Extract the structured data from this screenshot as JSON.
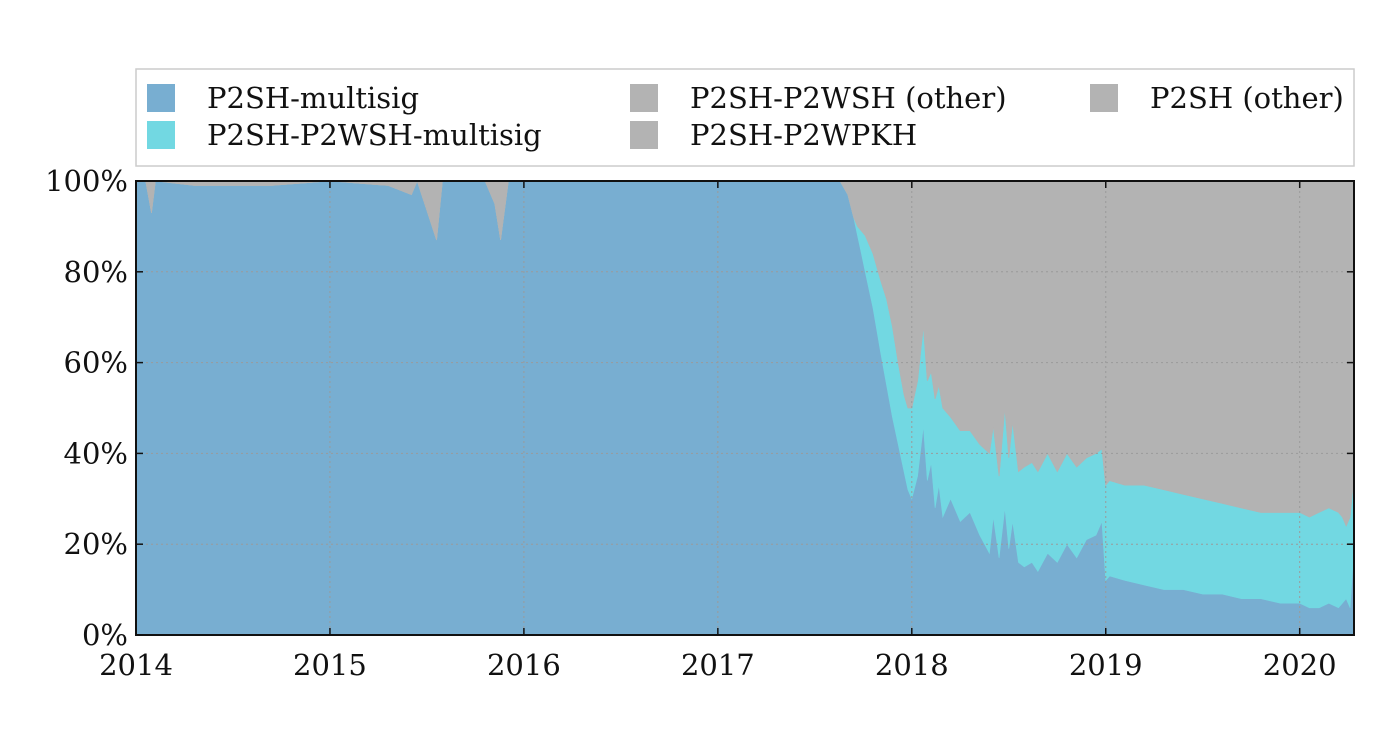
{
  "chart_data": {
    "type": "area",
    "stacked": true,
    "normalized_percent": true,
    "title": "",
    "xlabel": "",
    "ylabel": "",
    "ylim": [
      0,
      100
    ],
    "xlim": [
      2014.0,
      2020.28
    ],
    "x_ticks": [
      "2014",
      "2015",
      "2016",
      "2017",
      "2018",
      "2019",
      "2020"
    ],
    "y_ticks": [
      "0%",
      "20%",
      "40%",
      "60%",
      "80%",
      "100%"
    ],
    "grid": true,
    "legend_position": "top",
    "x": [
      2014.0,
      2014.05,
      2014.08,
      2014.1,
      2014.3,
      2014.7,
      2015.0,
      2015.3,
      2015.42,
      2015.45,
      2015.55,
      2015.58,
      2015.8,
      2015.85,
      2015.88,
      2015.92,
      2016.0,
      2016.5,
      2017.0,
      2017.5,
      2017.63,
      2017.67,
      2017.7,
      2017.72,
      2017.74,
      2017.76,
      2017.8,
      2017.84,
      2017.87,
      2017.9,
      2017.93,
      2017.96,
      2017.98,
      2018.0,
      2018.03,
      2018.06,
      2018.08,
      2018.1,
      2018.12,
      2018.14,
      2018.16,
      2018.2,
      2018.25,
      2018.3,
      2018.35,
      2018.4,
      2018.42,
      2018.45,
      2018.48,
      2018.5,
      2018.52,
      2018.55,
      2018.58,
      2018.62,
      2018.65,
      2018.7,
      2018.75,
      2018.8,
      2018.85,
      2018.9,
      2018.95,
      2018.98,
      2019.0,
      2019.02,
      2019.1,
      2019.2,
      2019.3,
      2019.4,
      2019.5,
      2019.6,
      2019.7,
      2019.8,
      2019.9,
      2020.0,
      2020.05,
      2020.1,
      2020.15,
      2020.2,
      2020.22,
      2020.24,
      2020.26,
      2020.28
    ],
    "series": [
      {
        "name": "P2SH-multisig",
        "color": "#78aed1",
        "values": [
          100,
          100,
          93,
          100,
          99,
          99,
          100,
          99,
          97,
          100,
          87,
          100,
          100,
          95,
          87,
          100,
          100,
          100,
          100,
          100,
          100,
          97,
          92,
          88,
          84,
          80,
          72,
          62,
          55,
          48,
          42,
          36,
          32,
          30,
          35,
          46,
          34,
          38,
          28,
          33,
          26,
          30,
          25,
          27,
          22,
          18,
          26,
          17,
          28,
          19,
          25,
          16,
          15,
          16,
          14,
          18,
          16,
          20,
          17,
          21,
          22,
          25,
          12,
          13,
          12,
          11,
          10,
          10,
          9,
          9,
          8,
          8,
          7,
          7,
          6,
          6,
          7,
          6,
          7,
          8,
          6,
          19
        ]
      },
      {
        "name": "P2SH-P2WSH-multisig",
        "color": "#72d8e2",
        "values": [
          0,
          0,
          0,
          0,
          0,
          0,
          0,
          0,
          0,
          0,
          0,
          0,
          0,
          0,
          0,
          0,
          0,
          0,
          0,
          0,
          0,
          0,
          0,
          2,
          5,
          8,
          12,
          16,
          19,
          20,
          18,
          17,
          18,
          20,
          21,
          22,
          22,
          20,
          24,
          22,
          24,
          18,
          20,
          18,
          20,
          22,
          20,
          18,
          22,
          20,
          22,
          20,
          22,
          22,
          22,
          22,
          20,
          20,
          20,
          18,
          18,
          16,
          21,
          21,
          21,
          22,
          22,
          21,
          21,
          20,
          20,
          19,
          20,
          20,
          20,
          21,
          21,
          21,
          19,
          16,
          20,
          16
        ]
      },
      {
        "name": "P2SH-P2WSH (other)",
        "color": "#b3b3b3",
        "values": [
          0,
          0,
          0,
          0,
          0,
          0,
          0,
          0,
          0,
          0,
          0,
          0,
          0,
          0,
          0,
          0,
          0,
          0,
          0,
          0,
          0,
          0,
          0,
          0,
          0,
          0,
          0,
          0,
          0,
          0,
          0,
          0,
          0,
          0,
          0,
          0,
          0,
          0,
          0,
          0,
          0,
          0,
          0,
          0,
          0,
          0,
          0,
          0,
          0,
          0,
          0,
          0,
          0,
          0,
          0,
          0,
          0,
          0,
          0,
          0,
          0,
          0,
          0,
          0,
          0,
          0,
          0,
          0,
          0,
          0,
          0,
          0,
          0,
          0,
          0,
          0,
          0,
          0,
          0,
          0,
          0,
          0
        ]
      },
      {
        "name": "P2SH-P2WPKH",
        "color": "#b3b3b3",
        "values": [
          0,
          0,
          0,
          0,
          0,
          0,
          0,
          0,
          0,
          0,
          0,
          0,
          0,
          0,
          0,
          0,
          0,
          0,
          0,
          0,
          0,
          3,
          8,
          10,
          11,
          12,
          16,
          22,
          26,
          32,
          40,
          47,
          50,
          50,
          44,
          32,
          44,
          42,
          48,
          45,
          50,
          52,
          55,
          55,
          58,
          60,
          54,
          65,
          50,
          61,
          53,
          64,
          63,
          62,
          64,
          60,
          64,
          60,
          63,
          61,
          60,
          59,
          67,
          66,
          67,
          67,
          68,
          69,
          70,
          71,
          72,
          73,
          73,
          73,
          74,
          73,
          72,
          73,
          74,
          76,
          74,
          65
        ]
      },
      {
        "name": "P2SH (other)",
        "color": "#b3b3b3",
        "values": [
          0,
          0,
          7,
          0,
          1,
          1,
          0,
          1,
          3,
          0,
          13,
          0,
          0,
          5,
          13,
          0,
          0,
          0,
          0,
          0,
          0,
          0,
          0,
          0,
          0,
          0,
          0,
          0,
          0,
          0,
          0,
          0,
          0,
          0,
          0,
          0,
          0,
          0,
          0,
          0,
          0,
          0,
          0,
          0,
          0,
          0,
          0,
          0,
          0,
          0,
          0,
          0,
          0,
          0,
          0,
          0,
          0,
          0,
          0,
          0,
          0,
          0,
          0,
          0,
          0,
          0,
          0,
          0,
          0,
          0,
          0,
          0,
          0,
          0,
          0,
          0,
          0,
          0,
          0,
          0,
          0,
          0
        ]
      }
    ]
  },
  "legend": {
    "items": [
      {
        "label": "P2SH-multisig",
        "color": "#78aed1"
      },
      {
        "label": "P2SH-P2WSH-multisig",
        "color": "#72d8e2"
      },
      {
        "label": "P2SH-P2WSH (other)",
        "color": "#b3b3b3"
      },
      {
        "label": "P2SH-P2WPKH",
        "color": "#b3b3b3"
      },
      {
        "label": "P2SH (other)",
        "color": "#b3b3b3"
      }
    ]
  }
}
